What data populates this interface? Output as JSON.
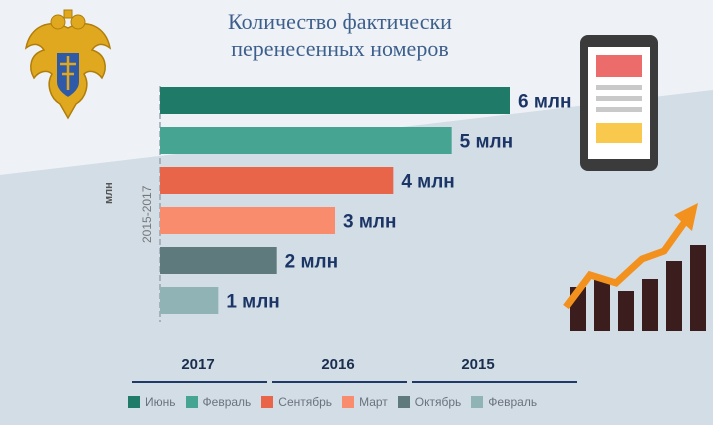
{
  "title": "Количество фактически перенесенных номеров",
  "axis": {
    "unit": "млн",
    "range": "2015-2017"
  },
  "years": [
    "2017",
    "2016",
    "2015"
  ],
  "colors": {
    "bg_light": "#dfe6ed",
    "bg_dark": "#c9d4de",
    "value_label": "#1a3566"
  },
  "chart_data": {
    "type": "bar",
    "orientation": "horizontal",
    "categories": [
      "Июнь",
      "Февраль",
      "Сентябрь",
      "Март",
      "Октябрь",
      "Февраль"
    ],
    "values": [
      6,
      5,
      4,
      3,
      2,
      1
    ],
    "value_labels": [
      "6 млн",
      "5 млн",
      "4 млн",
      "3 млн",
      "2 млн",
      "1 млн"
    ],
    "colors": [
      "#1f7a67",
      "#46a592",
      "#e8654a",
      "#f88c6c",
      "#5e7a7c",
      "#90b4b6"
    ],
    "xlim": [
      0,
      6
    ],
    "grid": false,
    "legend": "bottom"
  }
}
